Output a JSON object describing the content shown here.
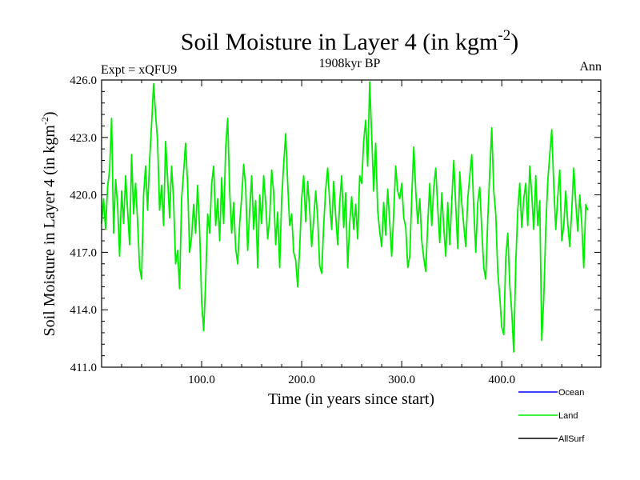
{
  "chart_data": {
    "type": "line",
    "title": "Soil Moisture in Layer 4 (in kgm",
    "title_sup": "-2",
    "title_close": ")",
    "subtitle_left": "Expt = xQFU9",
    "subtitle_center": "1908kyr BP",
    "subtitle_right": "Ann",
    "xlabel": "Time (in years since start)",
    "ylabel": "Soil Moisture in Layer 4 (in kgm",
    "ylabel_sup": "-2",
    "ylabel_close": ")",
    "xlim": [
      0,
      499
    ],
    "ylim": [
      411.0,
      426.0
    ],
    "x_ticks": [
      100,
      200,
      300,
      400
    ],
    "x_tick_labels": [
      "100.0",
      "200.0",
      "300.0",
      "400.0"
    ],
    "y_ticks": [
      411,
      414,
      417,
      420,
      423,
      426
    ],
    "y_tick_labels": [
      "411.0",
      "414.0",
      "417.0",
      "420.0",
      "423.0",
      "426.0"
    ],
    "grid": false,
    "legend": [
      "Ocean",
      "Land",
      "AllSurf"
    ],
    "legend_position": "bottom-right",
    "series": [
      {
        "name": "Ocean",
        "color": "#0000ff",
        "values": []
      },
      {
        "name": "Land",
        "color": "#00ee00",
        "x_start": 0,
        "x_step": 2,
        "values": [
          418.5,
          419.8,
          418.2,
          420.4,
          421.3,
          424.0,
          418.0,
          420.8,
          419.5,
          416.8,
          420.2,
          418.5,
          421.0,
          419.2,
          417.4,
          422.1,
          419.0,
          420.6,
          418.6,
          416.2,
          415.6,
          420.0,
          421.5,
          419.2,
          421.8,
          423.7,
          425.8,
          424.2,
          422.8,
          419.2,
          420.5,
          418.4,
          422.8,
          420.9,
          418.8,
          421.5,
          419.7,
          416.4,
          417.1,
          415.1,
          419.8,
          421.2,
          422.7,
          420.6,
          417.0,
          417.8,
          419.5,
          418.0,
          420.5,
          418.2,
          414.4,
          412.9,
          415.5,
          419.0,
          418.0,
          420.6,
          421.5,
          418.4,
          419.8,
          417.6,
          420.9,
          418.5,
          422.5,
          424.0,
          420.2,
          418.0,
          419.6,
          417.2,
          416.4,
          418.5,
          419.9,
          421.6,
          420.4,
          417.1,
          419.2,
          421.0,
          418.2,
          419.7,
          416.2,
          420.0,
          418.5,
          421.0,
          419.6,
          417.7,
          418.8,
          421.3,
          420.1,
          417.4,
          419.1,
          416.2,
          419.8,
          421.6,
          423.2,
          420.6,
          418.4,
          419.0,
          417.0,
          416.6,
          415.2,
          417.2,
          419.8,
          421.0,
          418.6,
          420.7,
          419.2,
          417.3,
          418.7,
          420.2,
          418.8,
          416.3,
          415.9,
          418.4,
          420.3,
          421.4,
          419.6,
          418.2,
          420.7,
          418.9,
          417.4,
          419.6,
          421.0,
          418.3,
          420.1,
          416.2,
          418.5,
          419.9,
          418.2,
          419.5,
          417.7,
          421.0,
          420.6,
          422.8,
          423.9,
          421.5,
          425.9,
          423.1,
          420.2,
          422.7,
          419.2,
          418.1,
          417.3,
          419.6,
          417.9,
          420.3,
          418.6,
          416.8,
          419.0,
          421.5,
          420.2,
          419.8,
          420.6,
          418.8,
          418.3,
          416.2,
          416.8,
          419.9,
          422.5,
          420.2,
          418.5,
          419.8,
          417.6,
          416.7,
          416.0,
          418.5,
          420.6,
          418.4,
          420.4,
          421.4,
          419.3,
          417.5,
          420.1,
          418.3,
          416.8,
          419.6,
          417.4,
          419.7,
          421.8,
          419.4,
          417.2,
          421.2,
          419.6,
          418.4,
          417.3,
          419.8,
          421.0,
          422.1,
          419.3,
          417.0,
          419.6,
          420.4,
          418.2,
          416.2,
          415.6,
          418.7,
          421.2,
          423.5,
          420.2,
          419.0,
          416.0,
          414.7,
          413.1,
          412.7,
          416.7,
          418.0,
          415.3,
          413.9,
          411.8,
          416.4,
          419.2,
          420.6,
          418.3,
          419.8,
          420.6,
          418.4,
          421.5,
          420.0,
          418.2,
          421.0,
          418.4,
          419.7,
          412.4,
          414.6,
          418.2,
          420.7,
          422.1,
          423.4,
          420.5,
          418.2,
          419.9,
          421.3,
          417.6,
          418.4,
          420.2,
          418.5,
          417.3,
          419.2,
          421.4,
          419.6,
          418.1,
          420.0,
          418.5,
          416.2,
          419.5,
          419.2
        ]
      },
      {
        "name": "AllSurf",
        "color": "#000000",
        "values": []
      }
    ]
  }
}
